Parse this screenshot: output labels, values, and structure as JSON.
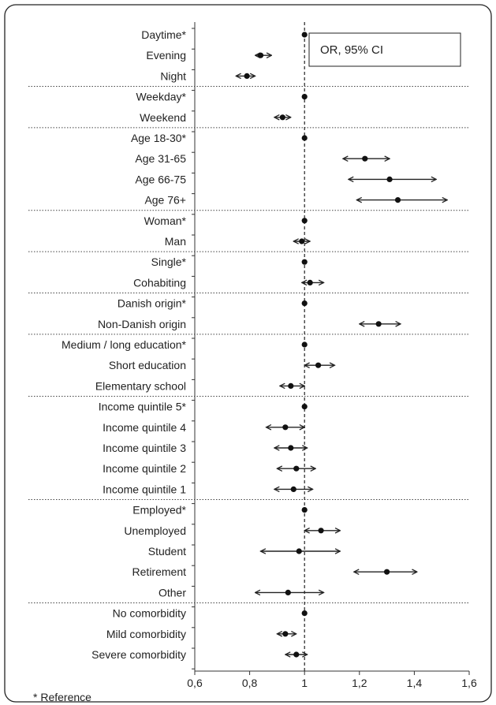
{
  "chart_data": {
    "type": "forest",
    "legend": "OR, 95% CI",
    "footnote": "* Reference",
    "xlim": [
      0.6,
      1.6
    ],
    "xticks": [
      "0,6",
      "0,8",
      "1",
      "1,2",
      "1,4",
      "1,6"
    ],
    "xtick_values": [
      0.6,
      0.8,
      1.0,
      1.2,
      1.4,
      1.6
    ],
    "reference_line": 1.0,
    "groups": [
      {
        "rows": [
          {
            "label": "Daytime*",
            "or": 1.0,
            "lo": null,
            "hi": null
          },
          {
            "label": "Evening",
            "or": 0.84,
            "lo": 0.82,
            "hi": 0.88
          },
          {
            "label": "Night",
            "or": 0.79,
            "lo": 0.75,
            "hi": 0.82
          }
        ]
      },
      {
        "rows": [
          {
            "label": "Weekday*",
            "or": 1.0,
            "lo": null,
            "hi": null
          },
          {
            "label": "Weekend",
            "or": 0.92,
            "lo": 0.89,
            "hi": 0.95
          }
        ]
      },
      {
        "rows": [
          {
            "label": "Age 18-30*",
            "or": 1.0,
            "lo": null,
            "hi": null
          },
          {
            "label": "Age 31-65",
            "or": 1.22,
            "lo": 1.14,
            "hi": 1.31
          },
          {
            "label": "Age 66-75",
            "or": 1.31,
            "lo": 1.16,
            "hi": 1.48
          },
          {
            "label": "Age 76+",
            "or": 1.34,
            "lo": 1.19,
            "hi": 1.52
          }
        ]
      },
      {
        "rows": [
          {
            "label": "Woman*",
            "or": 1.0,
            "lo": null,
            "hi": null
          },
          {
            "label": "Man",
            "or": 0.99,
            "lo": 0.96,
            "hi": 1.02
          }
        ]
      },
      {
        "rows": [
          {
            "label": "Single*",
            "or": 1.0,
            "lo": null,
            "hi": null
          },
          {
            "label": "Cohabiting",
            "or": 1.02,
            "lo": 0.99,
            "hi": 1.07
          }
        ]
      },
      {
        "rows": [
          {
            "label": "Danish origin*",
            "or": 1.0,
            "lo": null,
            "hi": null
          },
          {
            "label": "Non-Danish origin",
            "or": 1.27,
            "lo": 1.2,
            "hi": 1.35
          }
        ]
      },
      {
        "rows": [
          {
            "label": "Medium / long education*",
            "or": 1.0,
            "lo": null,
            "hi": null
          },
          {
            "label": "Short education",
            "or": 1.05,
            "lo": 1.0,
            "hi": 1.11
          },
          {
            "label": "Elementary school",
            "or": 0.95,
            "lo": 0.91,
            "hi": 1.0
          }
        ]
      },
      {
        "rows": [
          {
            "label": "Income quintile 5*",
            "or": 1.0,
            "lo": null,
            "hi": null
          },
          {
            "label": "Income quintile 4",
            "or": 0.93,
            "lo": 0.86,
            "hi": 1.0
          },
          {
            "label": "Income quintile 3",
            "or": 0.95,
            "lo": 0.89,
            "hi": 1.01
          },
          {
            "label": "Income quintile 2",
            "or": 0.97,
            "lo": 0.9,
            "hi": 1.04
          },
          {
            "label": "Income quintile 1",
            "or": 0.96,
            "lo": 0.89,
            "hi": 1.03
          }
        ]
      },
      {
        "rows": [
          {
            "label": "Employed*",
            "or": 1.0,
            "lo": null,
            "hi": null
          },
          {
            "label": "Unemployed",
            "or": 1.06,
            "lo": 1.0,
            "hi": 1.13
          },
          {
            "label": "Student",
            "or": 0.98,
            "lo": 0.84,
            "hi": 1.13
          },
          {
            "label": "Retirement",
            "or": 1.3,
            "lo": 1.18,
            "hi": 1.41
          },
          {
            "label": "Other",
            "or": 0.94,
            "lo": 0.82,
            "hi": 1.07
          }
        ]
      },
      {
        "rows": [
          {
            "label": "No comorbidity",
            "or": 1.0,
            "lo": null,
            "hi": null
          },
          {
            "label": "Mild comorbidity",
            "or": 0.93,
            "lo": 0.9,
            "hi": 0.97
          },
          {
            "label": "Severe comorbidity",
            "or": 0.97,
            "lo": 0.93,
            "hi": 1.01
          }
        ]
      }
    ]
  }
}
